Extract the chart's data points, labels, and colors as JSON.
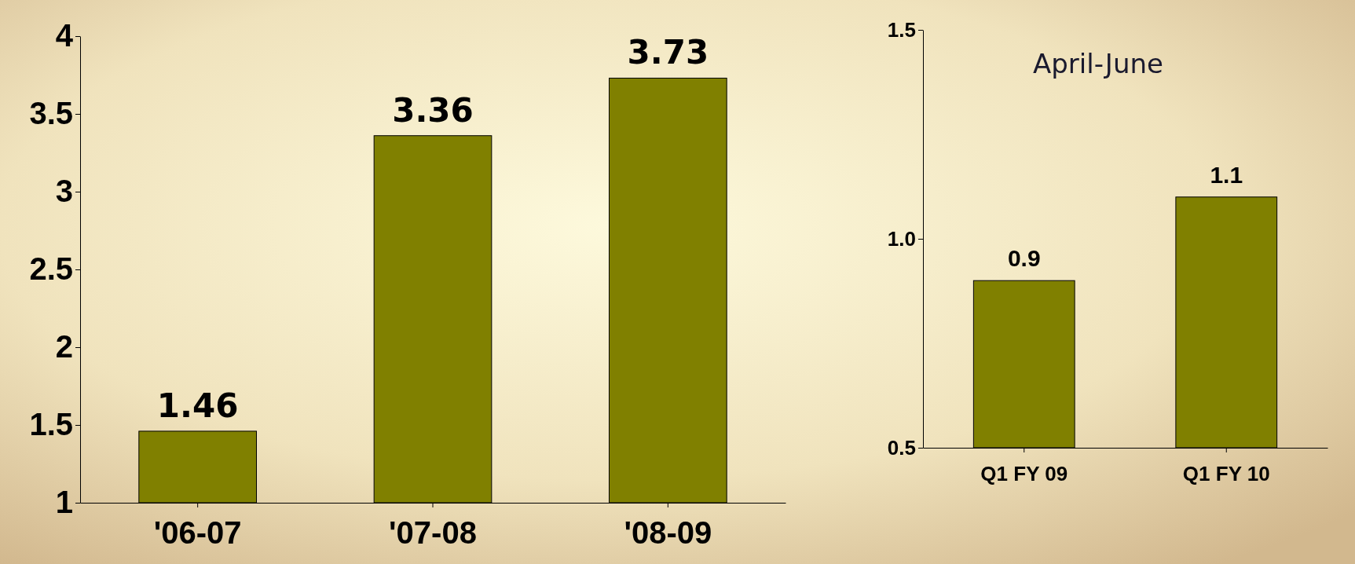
{
  "chart_data": [
    {
      "type": "bar",
      "categories": [
        "'06-07",
        "'07-08",
        "'08-09"
      ],
      "values": [
        1.46,
        3.36,
        3.73
      ],
      "color": "#808000",
      "ylim": [
        1,
        4
      ],
      "yticks": [
        1,
        1.5,
        2,
        2.5,
        3,
        3.5,
        4
      ],
      "data_labels": true
    },
    {
      "type": "bar",
      "title": "April-June",
      "categories": [
        "Q1 FY 09",
        "Q1 FY 10"
      ],
      "values": [
        0.9,
        1.1
      ],
      "color": "#808000",
      "ylim": [
        0.5,
        1.5
      ],
      "yticks": [
        0.5,
        {
          "value": 1,
          "label": "1.0"
        },
        1.5
      ],
      "data_labels": true
    }
  ]
}
